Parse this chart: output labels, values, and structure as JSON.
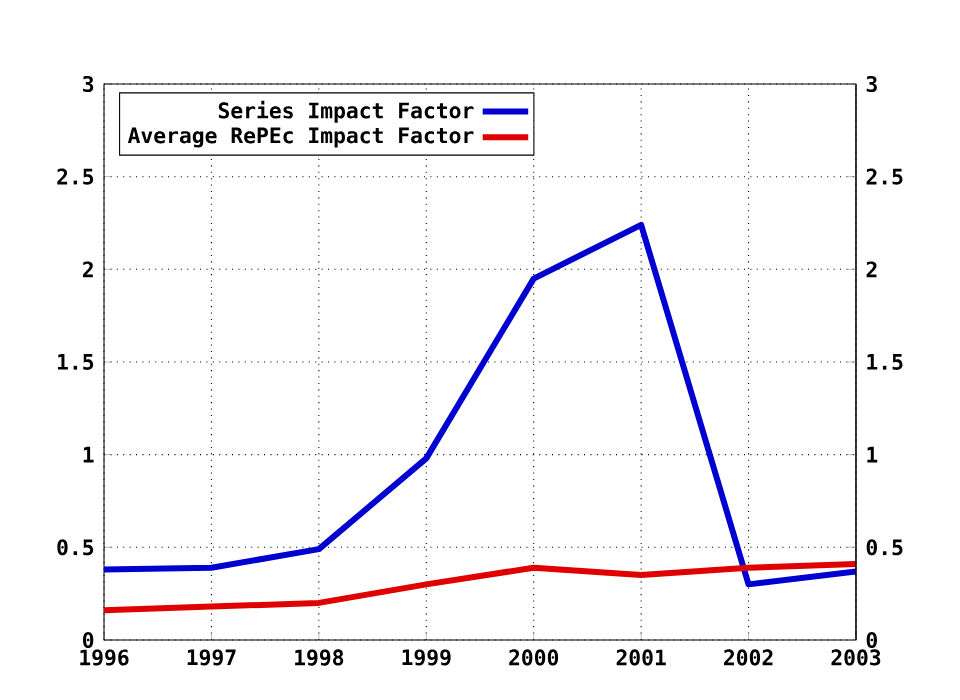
{
  "chart_data": {
    "type": "line",
    "x": [
      1996,
      1997,
      1998,
      1999,
      2000,
      2001,
      2002,
      2003
    ],
    "series": [
      {
        "name": "Series Impact Factor",
        "color": "#0000d0",
        "values": [
          0.38,
          0.39,
          0.49,
          0.98,
          1.95,
          2.24,
          0.3,
          0.37
        ]
      },
      {
        "name": "Average RePEc Impact Factor",
        "color": "#e00000",
        "values": [
          0.16,
          0.18,
          0.2,
          0.3,
          0.39,
          0.35,
          0.39,
          0.41
        ]
      }
    ],
    "xlim": [
      1996,
      2003
    ],
    "xticks": [
      1996,
      1997,
      1998,
      1999,
      2000,
      2001,
      2002,
      2003
    ],
    "ylim": [
      0,
      3
    ],
    "yticks": [
      0,
      0.5,
      1,
      1.5,
      2,
      2.5,
      3
    ],
    "y2lim": [
      0,
      3
    ],
    "y2ticks": [
      0,
      0.5,
      1,
      1.5,
      2,
      2.5,
      3
    ],
    "grid": true,
    "legend": "top left"
  }
}
